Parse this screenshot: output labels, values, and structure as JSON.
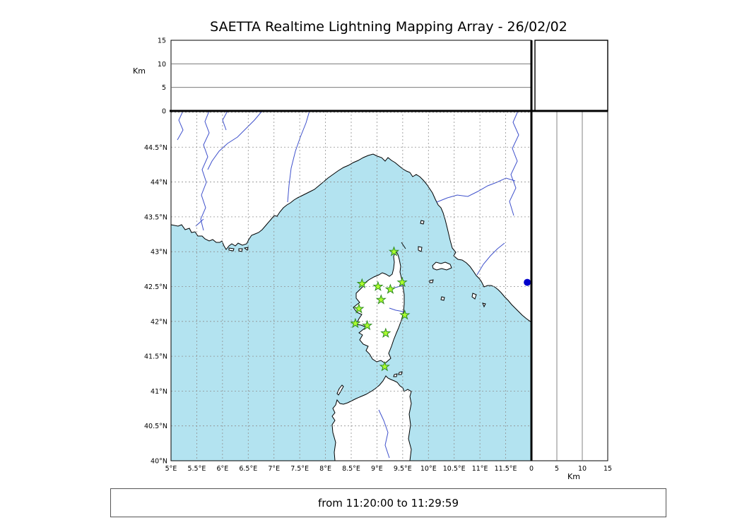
{
  "title": "SAETTA Realtime Lightning Mapping Array - 26/02/02",
  "status_bar": {
    "text": "from 11:20:00 to 11:29:59"
  },
  "altitude_panel": {
    "axis_label": "Km",
    "range": [
      0,
      15
    ],
    "ticks": [
      {
        "value": 0,
        "label": "0"
      },
      {
        "value": 5,
        "label": "5"
      },
      {
        "value": 10,
        "label": "10"
      },
      {
        "value": 15,
        "label": "15"
      }
    ],
    "grid_values": [
      5,
      10
    ]
  },
  "right_panel": {
    "axis_label": "Km",
    "range": [
      0,
      15
    ],
    "ticks": [
      {
        "value": 0,
        "label": "0"
      },
      {
        "value": 5,
        "label": "5"
      },
      {
        "value": 10,
        "label": "10"
      },
      {
        "value": 15,
        "label": "15"
      }
    ],
    "grid_values": [
      5,
      10
    ]
  },
  "map": {
    "lon_range": [
      5,
      12
    ],
    "lat_range": [
      40,
      45.02
    ],
    "lon_ticks": [
      {
        "value": 5,
        "label": "5°E"
      },
      {
        "value": 5.5,
        "label": "5.5°E"
      },
      {
        "value": 6,
        "label": "6°E"
      },
      {
        "value": 6.5,
        "label": "6.5°E"
      },
      {
        "value": 7,
        "label": "7°E"
      },
      {
        "value": 7.5,
        "label": "7.5°E"
      },
      {
        "value": 8,
        "label": "8°E"
      },
      {
        "value": 8.5,
        "label": "8.5°E"
      },
      {
        "value": 9,
        "label": "9°E"
      },
      {
        "value": 9.5,
        "label": "9.5°E"
      },
      {
        "value": 10,
        "label": "10°E"
      },
      {
        "value": 10.5,
        "label": "10.5°E"
      },
      {
        "value": 11,
        "label": "11°E"
      },
      {
        "value": 11.5,
        "label": "11.5°E"
      }
    ],
    "lat_ticks": [
      {
        "value": 40,
        "label": "40°N"
      },
      {
        "value": 40.5,
        "label": "40.5°N"
      },
      {
        "value": 41,
        "label": "41°N"
      },
      {
        "value": 41.5,
        "label": "41.5°N"
      },
      {
        "value": 42,
        "label": "42°N"
      },
      {
        "value": 42.5,
        "label": "42.5°N"
      },
      {
        "value": 43,
        "label": "43°N"
      },
      {
        "value": 43.5,
        "label": "43.5°N"
      },
      {
        "value": 44,
        "label": "44°N"
      },
      {
        "value": 44.5,
        "label": "44.5°N"
      }
    ],
    "lon_grid_values": [
      5.5,
      6,
      6.5,
      7,
      7.5,
      8,
      8.5,
      9,
      9.5,
      10,
      10.5,
      11,
      11.5
    ],
    "lat_grid_values": [
      40.5,
      41,
      41.5,
      42,
      42.5,
      43,
      43.5,
      44,
      44.5,
      45
    ],
    "colors": {
      "sea": "#b3e3f0",
      "land": "#ffffff",
      "coast": "#000000",
      "river": "#3f51cc",
      "grid": "#909090",
      "station": "#adff2f",
      "station_edge": "#2e8b22",
      "point": "#0000cc"
    }
  },
  "chart_data": {
    "type": "map",
    "title": "SAETTA Realtime Lightning Mapping Array - 26/02/02",
    "time_window": {
      "from": "11:20:00",
      "to": "11:29:59"
    },
    "lon_range": [
      5,
      12
    ],
    "lat_range": [
      40,
      45.02
    ],
    "altitude_axis_km": [
      0,
      15
    ],
    "stations": [
      {
        "lon": 9.33,
        "lat": 43.0
      },
      {
        "lon": 8.71,
        "lat": 42.54
      },
      {
        "lon": 9.02,
        "lat": 42.5
      },
      {
        "lon": 9.26,
        "lat": 42.46
      },
      {
        "lon": 9.49,
        "lat": 42.56
      },
      {
        "lon": 9.08,
        "lat": 42.31
      },
      {
        "lon": 8.65,
        "lat": 42.18
      },
      {
        "lon": 9.54,
        "lat": 42.09
      },
      {
        "lon": 8.58,
        "lat": 41.97
      },
      {
        "lon": 8.81,
        "lat": 41.94
      },
      {
        "lon": 9.17,
        "lat": 41.83
      },
      {
        "lon": 9.15,
        "lat": 41.35
      }
    ],
    "points": [
      {
        "lon": 11.92,
        "lat": 42.56,
        "color": "#0000cc"
      }
    ]
  }
}
